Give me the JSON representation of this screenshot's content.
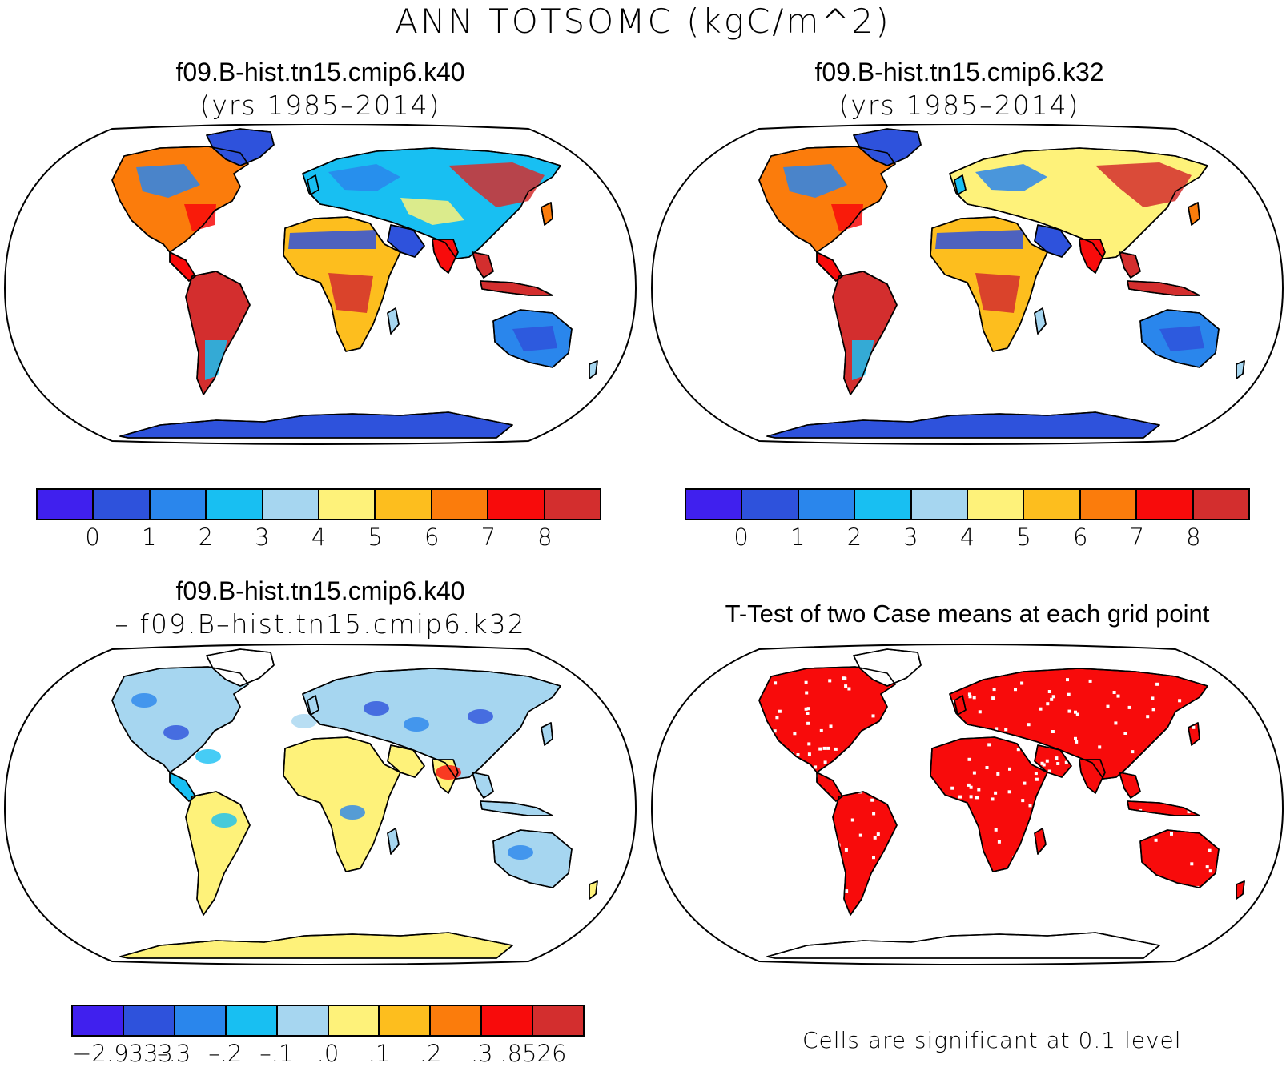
{
  "figure_title": "ANN TOTSOMC (kgC/m^2)",
  "panels": {
    "top_left": {
      "title": "f09.B-hist.tn15.cmip6.k40",
      "subtitle": "(yrs 1985–2014)"
    },
    "top_right": {
      "title": "f09.B-hist.tn15.cmip6.k32",
      "subtitle": "(yrs 1985–2014)"
    },
    "bottom_left": {
      "title": "f09.B-hist.tn15.cmip6.k40",
      "subtitle": "– f09.B–hist.tn15.cmip6.k32"
    },
    "bottom_right": {
      "title": "T-Test of two Case means at each grid point",
      "note": "Cells are significant at 0.1 level"
    }
  },
  "colorbars": {
    "abs": {
      "colors": [
        "#4020ee",
        "#2e52dc",
        "#2a86ec",
        "#18bff2",
        "#a6d6f0",
        "#fef27a",
        "#fdbe1e",
        "#fb7c0c",
        "#f80b0b",
        "#d32e2e"
      ],
      "labels": [
        "0",
        "1",
        "2",
        "3",
        "4",
        "5",
        "6",
        "7",
        "8"
      ]
    },
    "diff": {
      "colors": [
        "#4020ee",
        "#2e52dc",
        "#2a86ec",
        "#18bff2",
        "#a6d6f0",
        "#fef27a",
        "#fdbe1e",
        "#fb7c0c",
        "#f80b0b",
        "#d32e2e"
      ],
      "labels": [
        "−2.9333",
        "–.3",
        "–.2",
        "–.1",
        ".0",
        ".1",
        ".2",
        ".3",
        ".8526"
      ]
    }
  },
  "fill_colors": {
    "ttest_significant": "#f80b0b",
    "antarctica_abs": "#2e52dc",
    "antarctica_diff": "#fef27a"
  }
}
